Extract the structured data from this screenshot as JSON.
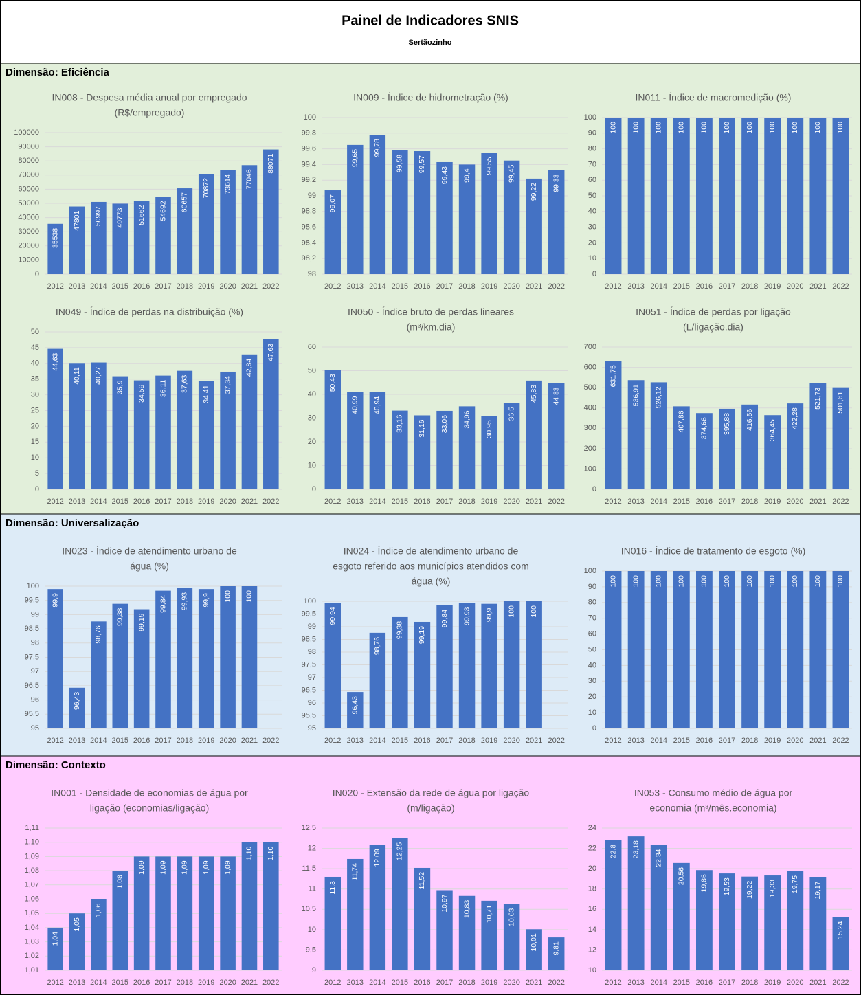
{
  "header": {
    "title": "Painel de Indicadores SNIS",
    "subtitle": "Sertãozinho"
  },
  "sections": [
    {
      "title": "Dimensão: Eficiência"
    },
    {
      "title": "Dimensão: Universalização"
    },
    {
      "title": "Dimensão: Contexto"
    }
  ],
  "chart_data": [
    {
      "type": "bar",
      "title": [
        "IN008 - Despesa média anual por empregado",
        "(R$/empregado)"
      ],
      "color": "#4472c4",
      "categories": [
        "2012",
        "2013",
        "2014",
        "2015",
        "2016",
        "2017",
        "2018",
        "2019",
        "2020",
        "2021",
        "2022"
      ],
      "values": [
        35538,
        47801,
        50997,
        49773,
        51662,
        54692,
        60657,
        70872,
        73614,
        77046,
        88071
      ],
      "ylim": [
        0,
        100000
      ],
      "yticks": [
        0,
        10000,
        20000,
        30000,
        40000,
        50000,
        60000,
        70000,
        80000,
        90000,
        100000
      ]
    },
    {
      "type": "bar",
      "title": [
        "IN009 - Índice de hidrometração (%)"
      ],
      "color": "#4472c4",
      "categories": [
        "2012",
        "2013",
        "2014",
        "2015",
        "2016",
        "2017",
        "2018",
        "2019",
        "2020",
        "2021",
        "2022"
      ],
      "values": [
        99.07,
        99.65,
        99.78,
        99.58,
        99.57,
        99.43,
        99.4,
        99.55,
        99.45,
        99.22,
        99.33
      ],
      "value_labels": [
        "99,07",
        "99,65",
        "99,78",
        "99,58",
        "99,57",
        "99,43",
        "99,4",
        "99,55",
        "99,45",
        "99,22",
        "99,33"
      ],
      "ylim": [
        98,
        100
      ],
      "yticks": [
        98,
        {
          "value": 98.2,
          "label": "98,2"
        },
        {
          "value": 98.4,
          "label": "98,4"
        },
        {
          "value": 98.6,
          "label": "98,6"
        },
        {
          "value": 98.8,
          "label": "98,8"
        },
        99,
        {
          "value": 99.2,
          "label": "99,2"
        },
        {
          "value": 99.4,
          "label": "99,4"
        },
        {
          "value": 99.6,
          "label": "99,6"
        },
        {
          "value": 99.8,
          "label": "99,8"
        },
        100
      ]
    },
    {
      "type": "bar",
      "title": [
        "IN011 - Índice de macromedição (%)"
      ],
      "color": "#4472c4",
      "categories": [
        "2012",
        "2013",
        "2014",
        "2015",
        "2016",
        "2017",
        "2018",
        "2019",
        "2020",
        "2021",
        "2022"
      ],
      "values": [
        100,
        100,
        100,
        100,
        100,
        100,
        100,
        100,
        100,
        100,
        100
      ],
      "ylim": [
        0,
        100
      ],
      "yticks": [
        0,
        10,
        20,
        30,
        40,
        50,
        60,
        70,
        80,
        90,
        100
      ]
    },
    {
      "type": "bar",
      "title": [
        "IN049 - Índice de perdas na distribuição (%)"
      ],
      "color": "#4472c4",
      "categories": [
        "2012",
        "2013",
        "2014",
        "2015",
        "2016",
        "2017",
        "2018",
        "2019",
        "2020",
        "2021",
        "2022"
      ],
      "values": [
        44.63,
        40.11,
        40.27,
        35.9,
        34.59,
        36.11,
        37.63,
        34.41,
        37.34,
        42.84,
        47.63
      ],
      "value_labels": [
        "44,63",
        "40,11",
        "40,27",
        "35,9",
        "34,59",
        "36,11",
        "37,63",
        "34,41",
        "37,34",
        "42,84",
        "47,63"
      ],
      "ylim": [
        0,
        50
      ],
      "yticks": [
        0,
        5,
        10,
        15,
        20,
        25,
        30,
        35,
        40,
        45,
        50
      ]
    },
    {
      "type": "bar",
      "title": [
        "IN050 - Índice bruto de perdas lineares",
        "(m³/km.dia)"
      ],
      "color": "#4472c4",
      "categories": [
        "2012",
        "2013",
        "2014",
        "2015",
        "2016",
        "2017",
        "2018",
        "2019",
        "2020",
        "2021",
        "2022"
      ],
      "values": [
        50.43,
        40.99,
        40.94,
        33.16,
        31.16,
        33.06,
        34.96,
        30.95,
        36.5,
        45.83,
        44.83
      ],
      "value_labels": [
        "50,43",
        "40,99",
        "40,94",
        "33,16",
        "31,16",
        "33,06",
        "34,96",
        "30,95",
        "36,5",
        "45,83",
        "44,83"
      ],
      "ylim": [
        0,
        60
      ],
      "yticks": [
        0,
        10,
        20,
        30,
        40,
        50,
        60
      ]
    },
    {
      "type": "bar",
      "title": [
        "IN051 - Índice de perdas por ligação",
        "(L/ligação.dia)"
      ],
      "color": "#4472c4",
      "categories": [
        "2012",
        "2013",
        "2014",
        "2015",
        "2016",
        "2017",
        "2018",
        "2019",
        "2020",
        "2021",
        "2022"
      ],
      "values": [
        631.75,
        536.91,
        526.12,
        407.86,
        374.66,
        395.88,
        416.56,
        364.45,
        422.28,
        521.73,
        501.61
      ],
      "value_labels": [
        "631,75",
        "536,91",
        "526,12",
        "407,86",
        "374,66",
        "395,88",
        "416,56",
        "364,45",
        "422,28",
        "521,73",
        "501,61"
      ],
      "ylim": [
        0,
        700
      ],
      "yticks": [
        0,
        100,
        200,
        300,
        400,
        500,
        600,
        700
      ]
    },
    {
      "type": "bar",
      "title": [
        "IN023 - Índice de atendimento urbano de",
        "água (%)"
      ],
      "color": "#4472c4",
      "categories": [
        "2012",
        "2013",
        "2014",
        "2015",
        "2016",
        "2017",
        "2018",
        "2019",
        "2020",
        "2021",
        "2022"
      ],
      "values": [
        99.9,
        96.43,
        98.76,
        99.38,
        99.19,
        99.84,
        99.93,
        99.9,
        100,
        100,
        null
      ],
      "value_labels": [
        "99,9",
        "96,43",
        "98,76",
        "99,38",
        "99,19",
        "99,84",
        "99,93",
        "99,9",
        "100",
        "100",
        null
      ],
      "ylim": [
        95,
        100
      ],
      "yticks": [
        95,
        {
          "value": 95.5,
          "label": "95,5"
        },
        96,
        {
          "value": 96.5,
          "label": "96,5"
        },
        97,
        {
          "value": 97.5,
          "label": "97,5"
        },
        98,
        {
          "value": 98.5,
          "label": "98,5"
        },
        99,
        {
          "value": 99.5,
          "label": "99,5"
        },
        100
      ]
    },
    {
      "type": "bar",
      "title": [
        "IN024 - Índice de atendimento urbano de",
        "esgoto referido aos municípios atendidos com",
        "água (%)"
      ],
      "color": "#4472c4",
      "categories": [
        "2012",
        "2013",
        "2014",
        "2015",
        "2016",
        "2017",
        "2018",
        "2019",
        "2020",
        "2021",
        "2022"
      ],
      "values": [
        99.94,
        96.43,
        98.76,
        99.38,
        99.19,
        99.84,
        99.93,
        99.9,
        100,
        100,
        null
      ],
      "value_labels": [
        "99,94",
        "96,43",
        "98,76",
        "99,38",
        "99,19",
        "99,84",
        "99,93",
        "99,9",
        "100",
        "100",
        null
      ],
      "ylim": [
        95,
        100
      ],
      "yticks": [
        95,
        {
          "value": 95.5,
          "label": "95,5"
        },
        96,
        {
          "value": 96.5,
          "label": "96,5"
        },
        97,
        {
          "value": 97.5,
          "label": "97,5"
        },
        98,
        {
          "value": 98.5,
          "label": "98,5"
        },
        99,
        {
          "value": 99.5,
          "label": "99,5"
        },
        100
      ]
    },
    {
      "type": "bar",
      "title": [
        "IN016 - Índice de tratamento de esgoto (%)"
      ],
      "color": "#4472c4",
      "categories": [
        "2012",
        "2013",
        "2014",
        "2015",
        "2016",
        "2017",
        "2018",
        "2019",
        "2020",
        "2021",
        "2022"
      ],
      "values": [
        100,
        100,
        100,
        100,
        100,
        100,
        100,
        100,
        100,
        100,
        100
      ],
      "ylim": [
        0,
        100
      ],
      "yticks": [
        0,
        10,
        20,
        30,
        40,
        50,
        60,
        70,
        80,
        90,
        100
      ]
    },
    {
      "type": "bar",
      "title": [
        "IN001 - Densidade de economias de água por",
        "ligação (economias/ligação)"
      ],
      "color": "#4472c4",
      "categories": [
        "2012",
        "2013",
        "2014",
        "2015",
        "2016",
        "2017",
        "2018",
        "2019",
        "2020",
        "2021",
        "2022"
      ],
      "values": [
        1.04,
        1.05,
        1.06,
        1.08,
        1.09,
        1.09,
        1.09,
        1.09,
        1.09,
        1.1,
        1.1
      ],
      "value_labels": [
        "1,04",
        "1,05",
        "1,06",
        "1,08",
        "1,09",
        "1,09",
        "1,09",
        "1,09",
        "1,09",
        "1,10",
        "1,10"
      ],
      "ylim": [
        1.01,
        1.11
      ],
      "yticks": [
        {
          "value": 1.01,
          "label": "1,01"
        },
        {
          "value": 1.02,
          "label": "1,02"
        },
        {
          "value": 1.03,
          "label": "1,03"
        },
        {
          "value": 1.04,
          "label": "1,04"
        },
        {
          "value": 1.05,
          "label": "1,05"
        },
        {
          "value": 1.06,
          "label": "1,06"
        },
        {
          "value": 1.07,
          "label": "1,07"
        },
        {
          "value": 1.08,
          "label": "1,08"
        },
        {
          "value": 1.09,
          "label": "1,09"
        },
        {
          "value": 1.1,
          "label": "1,10"
        },
        {
          "value": 1.11,
          "label": "1,11"
        }
      ]
    },
    {
      "type": "bar",
      "title": [
        "IN020 - Extensão da rede de água por ligação",
        "(m/ligação)"
      ],
      "color": "#4472c4",
      "categories": [
        "2012",
        "2013",
        "2014",
        "2015",
        "2016",
        "2017",
        "2018",
        "2019",
        "2020",
        "2021",
        "2022"
      ],
      "values": [
        11.3,
        11.74,
        12.09,
        12.25,
        11.52,
        10.97,
        10.83,
        10.71,
        10.63,
        10.01,
        9.81
      ],
      "value_labels": [
        "11,3",
        "11,74",
        "12,09",
        "12,25",
        "11,52",
        "10,97",
        "10,83",
        "10,71",
        "10,63",
        "10,01",
        "9,81"
      ],
      "ylim": [
        9,
        12.5
      ],
      "yticks": [
        9,
        {
          "value": 9.5,
          "label": "9,5"
        },
        10,
        {
          "value": 10.5,
          "label": "10,5"
        },
        11,
        {
          "value": 11.5,
          "label": "11,5"
        },
        12,
        {
          "value": 12.5,
          "label": "12,5"
        }
      ]
    },
    {
      "type": "bar",
      "title": [
        "IN053 - Consumo médio de água por",
        "economia (m³/mês.economia)"
      ],
      "color": "#4472c4",
      "categories": [
        "2012",
        "2013",
        "2014",
        "2015",
        "2016",
        "2017",
        "2018",
        "2019",
        "2020",
        "2021",
        "2022"
      ],
      "values": [
        22.8,
        23.18,
        22.34,
        20.56,
        19.86,
        19.53,
        19.22,
        19.33,
        19.75,
        19.17,
        15.24
      ],
      "value_labels": [
        "22,8",
        "23,18",
        "22,34",
        "20,56",
        "19,86",
        "19,53",
        "19,22",
        "19,33",
        "19,75",
        "19,17",
        "15,24"
      ],
      "ylim": [
        10,
        24
      ],
      "yticks": [
        10,
        12,
        14,
        16,
        18,
        20,
        22,
        24
      ]
    }
  ]
}
